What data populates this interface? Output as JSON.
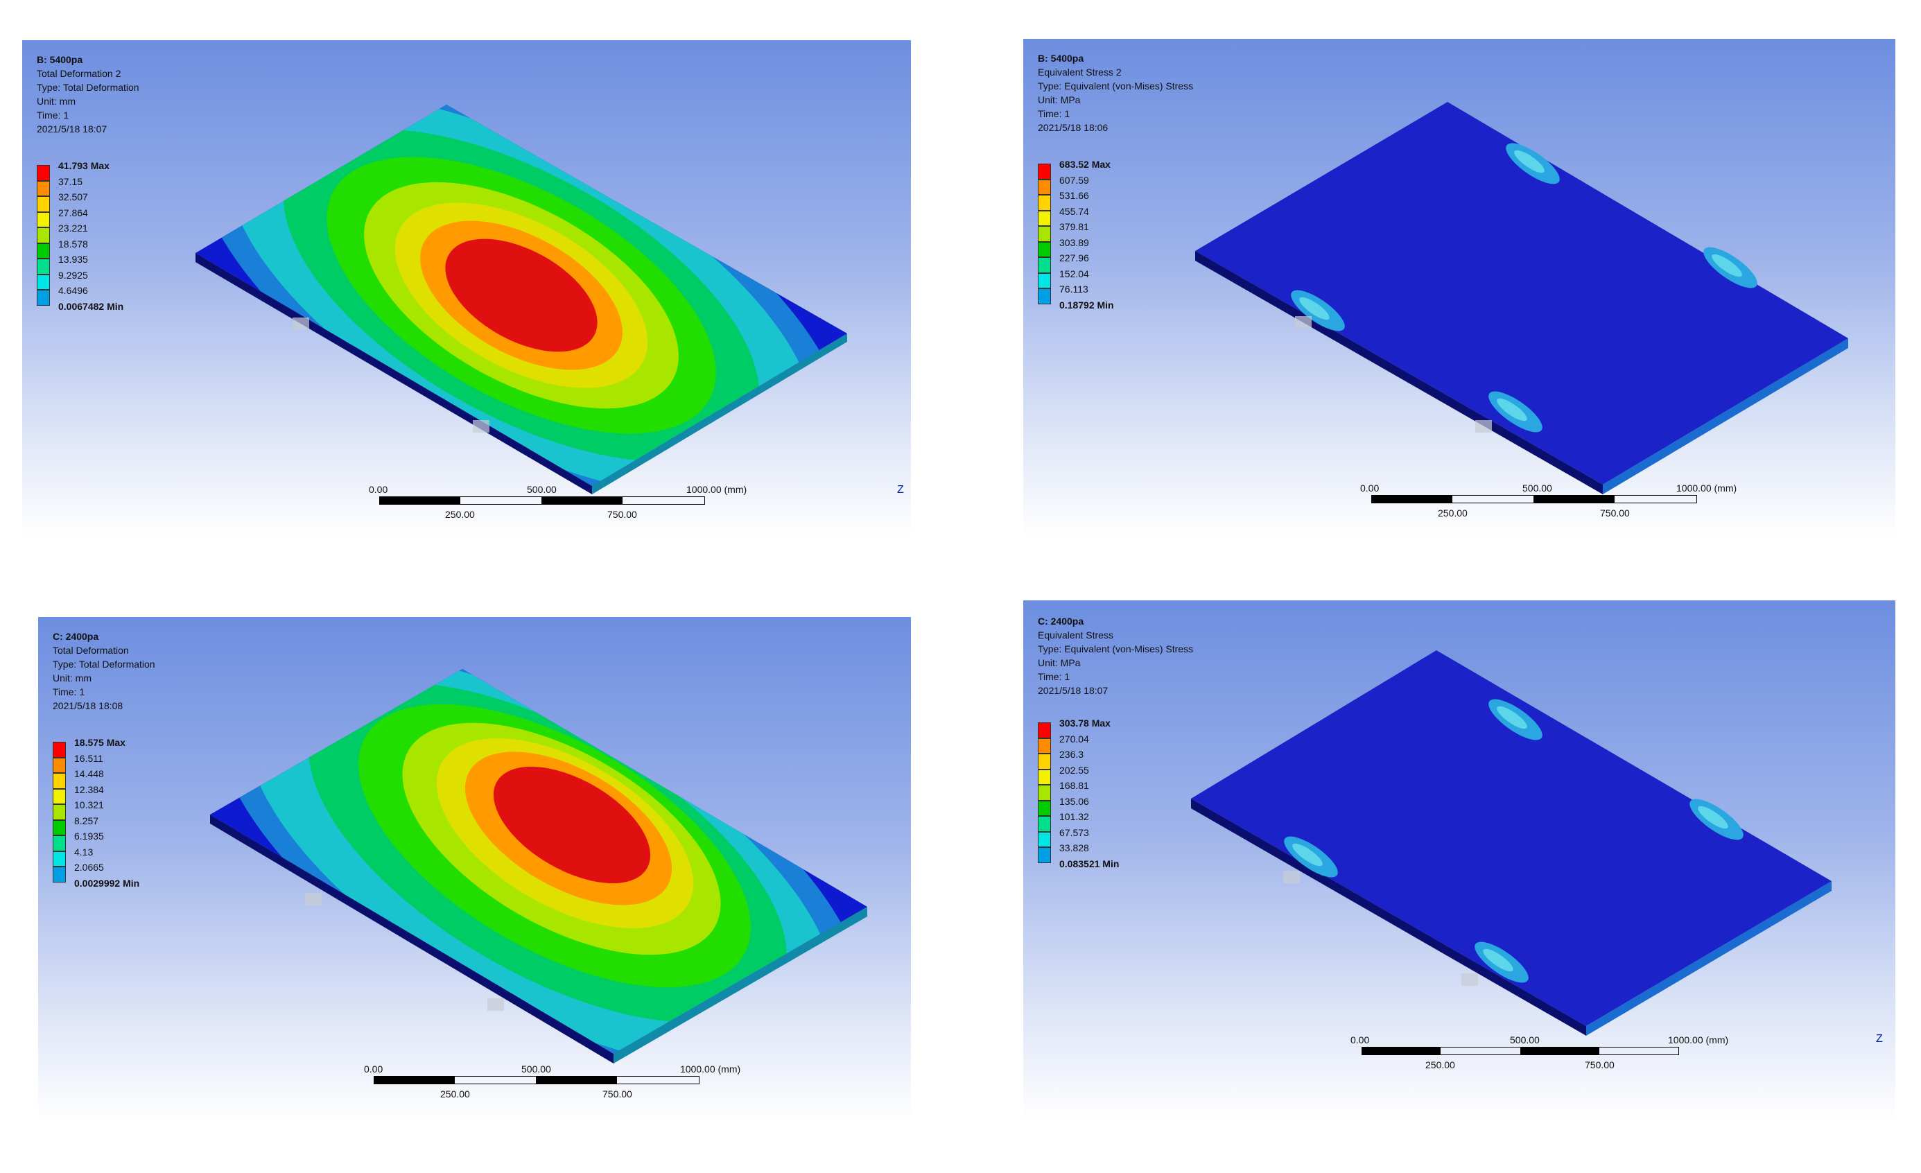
{
  "panels": {
    "top_left": {
      "header": [
        "B: 5400pa",
        "Total Deformation 2",
        "Type: Total Deformation",
        "Unit: mm",
        "Time: 1",
        "2021/5/18 18:07"
      ],
      "legend": [
        "41.793 Max",
        "37.15",
        "32.507",
        "27.864",
        "23.221",
        "18.578",
        "13.935",
        "9.2925",
        "4.6496",
        "0.0067482 Min"
      ],
      "scale": {
        "t0": "0.00",
        "t500": "500.00",
        "t1000": "1000.00 (mm)",
        "t250": "250.00",
        "t750": "750.00"
      },
      "axis": "Z"
    },
    "top_right": {
      "header": [
        "B: 5400pa",
        "Equivalent Stress 2",
        "Type: Equivalent (von-Mises) Stress",
        "Unit: MPa",
        "Time: 1",
        "2021/5/18 18:06"
      ],
      "legend": [
        "683.52 Max",
        "607.59",
        "531.66",
        "455.74",
        "379.81",
        "303.89",
        "227.96",
        "152.04",
        "76.113",
        "0.18792 Min"
      ],
      "scale": {
        "t0": "0.00",
        "t500": "500.00",
        "t1000": "1000.00 (mm)",
        "t250": "250.00",
        "t750": "750.00"
      }
    },
    "bottom_left": {
      "header": [
        "C: 2400pa",
        "Total Deformation",
        "Type: Total Deformation",
        "Unit: mm",
        "Time: 1",
        "2021/5/18 18:08"
      ],
      "legend": [
        "18.575 Max",
        "16.511",
        "14.448",
        "12.384",
        "10.321",
        "8.257",
        "6.1935",
        "4.13",
        "2.0665",
        "0.0029992 Min"
      ],
      "scale": {
        "t0": "0.00",
        "t500": "500.00",
        "t1000": "1000.00 (mm)",
        "t250": "250.00",
        "t750": "750.00"
      }
    },
    "bottom_right": {
      "header": [
        "C: 2400pa",
        "Equivalent Stress",
        "Type: Equivalent (von-Mises) Stress",
        "Unit: MPa",
        "Time: 1",
        "2021/5/18 18:07"
      ],
      "legend": [
        "303.78 Max",
        "270.04",
        "236.3",
        "202.55",
        "168.81",
        "135.06",
        "101.32",
        "67.573",
        "33.828",
        "0.083521 Min"
      ],
      "scale": {
        "t0": "0.00",
        "t500": "500.00",
        "t1000": "1000.00 (mm)",
        "t250": "250.00",
        "t750": "750.00"
      },
      "axis": "Z"
    }
  },
  "colors": {
    "legend_bands": [
      "#ff0000",
      "#ff8c00",
      "#ffd200",
      "#f2f200",
      "#a8e600",
      "#00cc00",
      "#00e08c",
      "#00e6e6",
      "#00a0e6",
      "#0000e6"
    ],
    "plate_blue": "#1a22c8",
    "viewport_top": "#6d8ee0"
  }
}
